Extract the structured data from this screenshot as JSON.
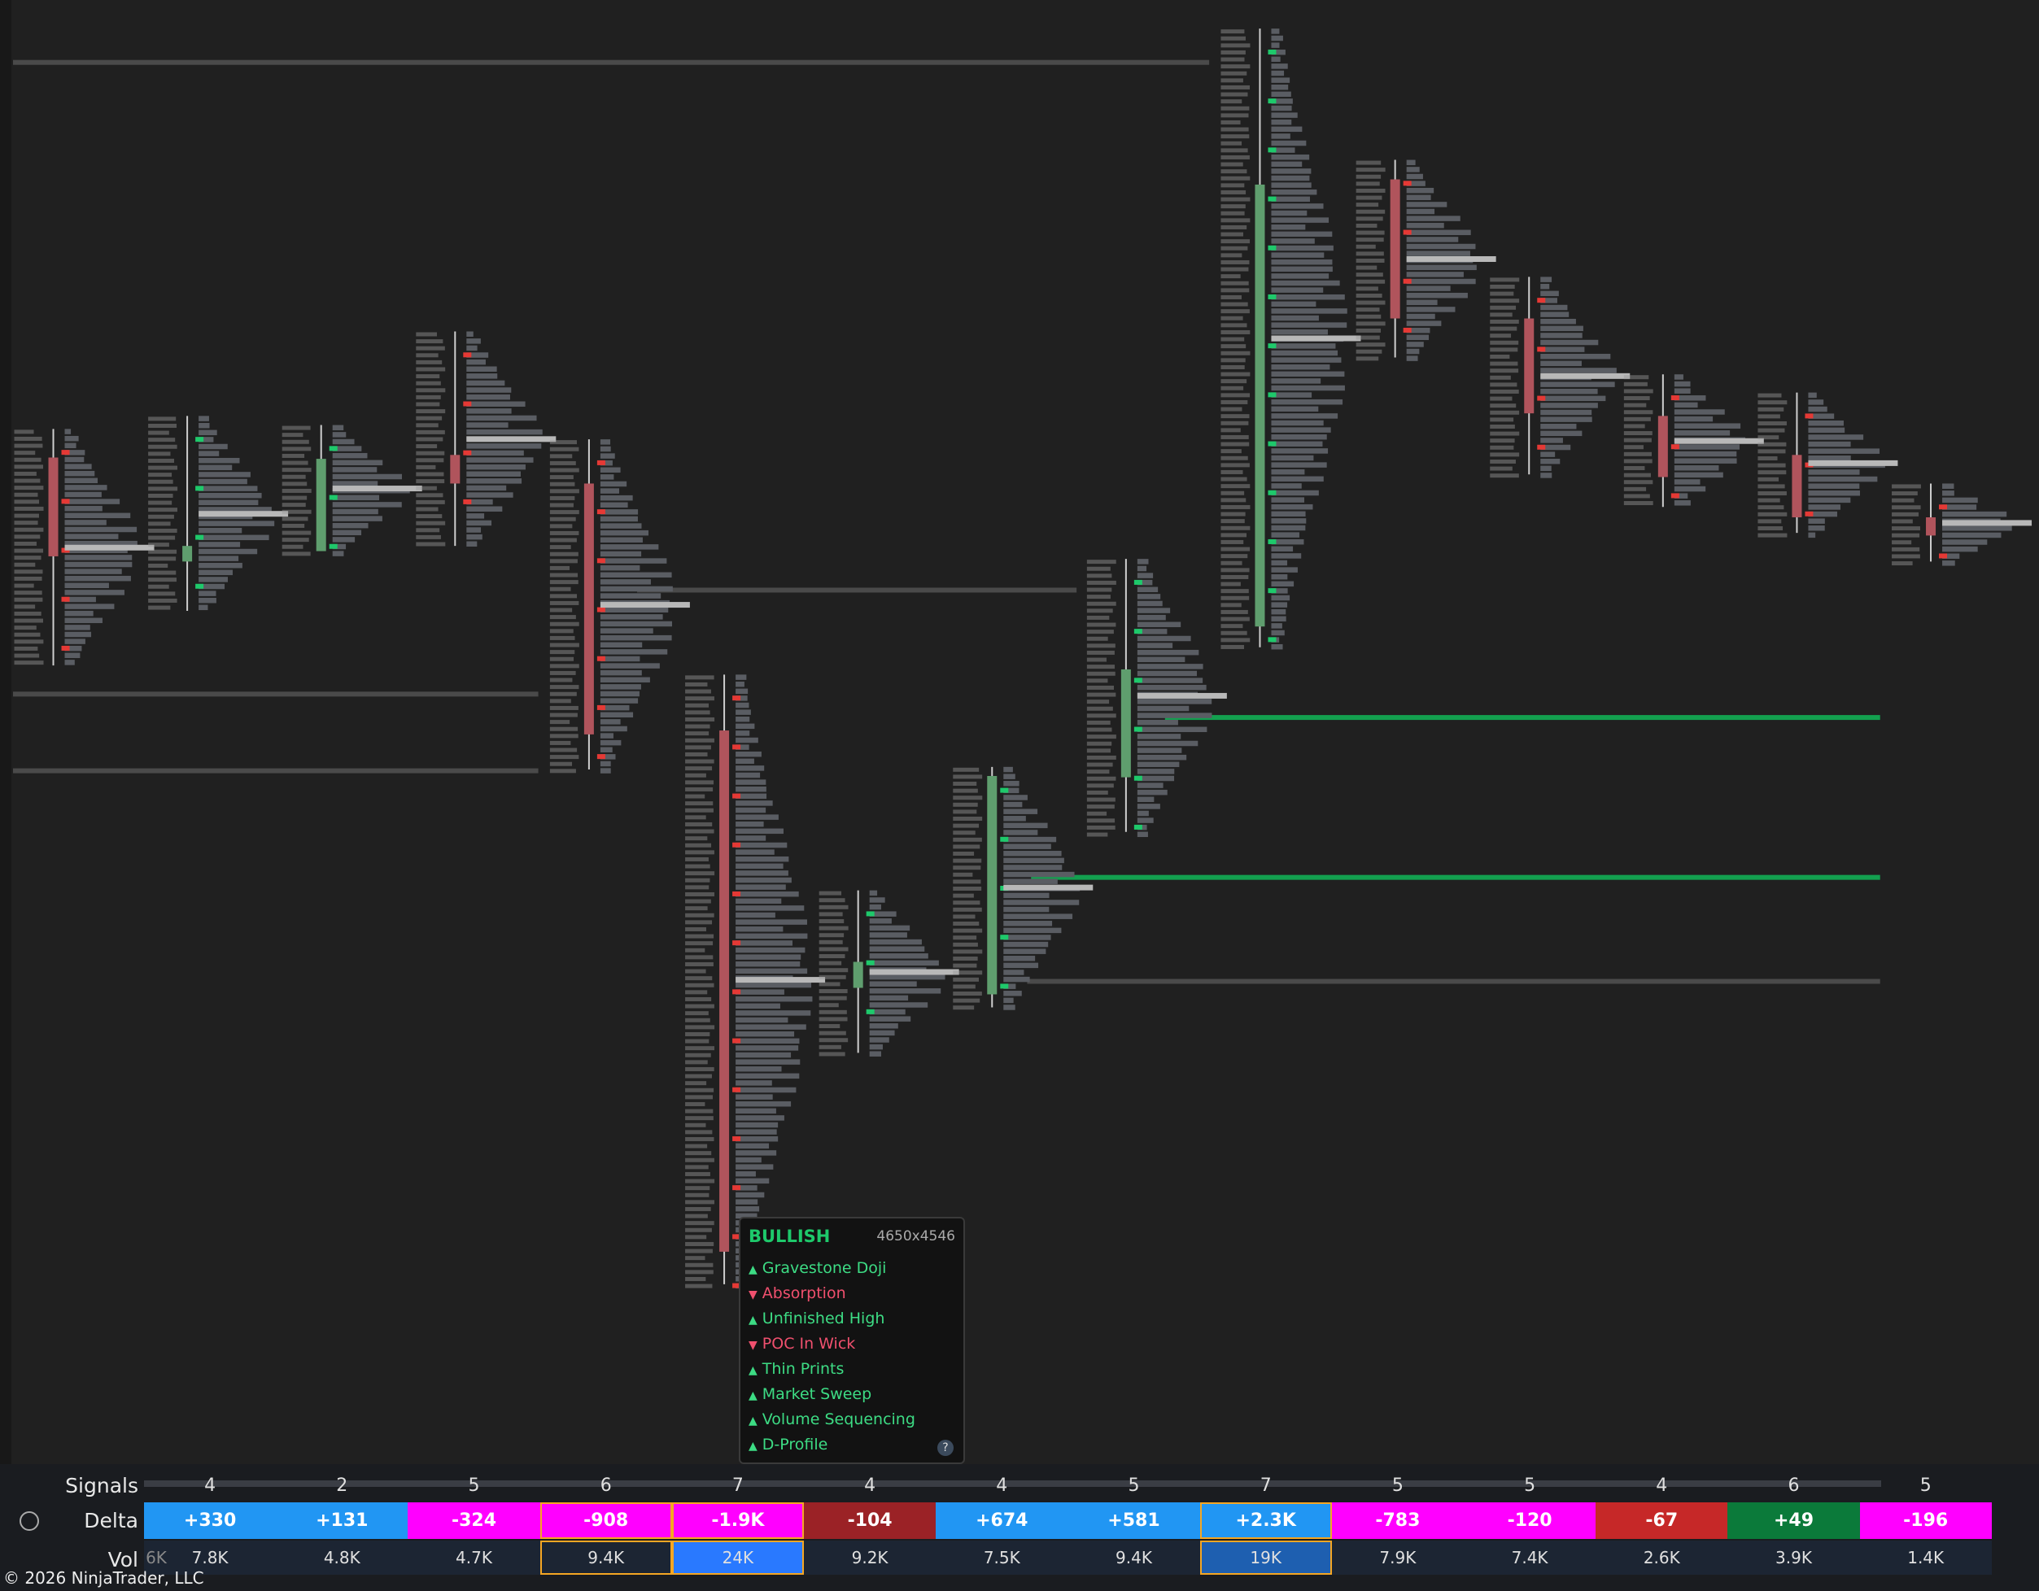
{
  "tooltip": {
    "title": "BULLISH",
    "size": "4650x4546",
    "items": [
      {
        "marker": "▲",
        "text": "Gravestone Doji",
        "color": "#3ddc84"
      },
      {
        "marker": "▼",
        "text": "Absorption",
        "color": "#f0506e"
      },
      {
        "marker": "▲",
        "text": "Unfinished High",
        "color": "#3ddc84"
      },
      {
        "marker": "▼",
        "text": "POC In Wick",
        "color": "#f0506e"
      },
      {
        "marker": "▲",
        "text": "Thin Prints",
        "color": "#3ddc84"
      },
      {
        "marker": "▲",
        "text": "Market Sweep",
        "color": "#3ddc84"
      },
      {
        "marker": "▲",
        "text": "Volume Sequencing",
        "color": "#3ddc84"
      },
      {
        "marker": "▲",
        "text": "D-Profile",
        "color": "#3ddc84"
      }
    ],
    "help": "?"
  },
  "table": {
    "row_labels": [
      "Signals",
      "Delta",
      "Vol"
    ],
    "signals": [
      4,
      2,
      5,
      6,
      7,
      4,
      4,
      5,
      7,
      5,
      5,
      4,
      6,
      5
    ],
    "delta": [
      "+330",
      "+131",
      "-324",
      "-908",
      "-1.9K",
      "-104",
      "+674",
      "+581",
      "+2.3K",
      "-783",
      "-120",
      "-67",
      "+49",
      "-196"
    ],
    "delta_colors": [
      "#2196f3",
      "#2196f3",
      "#ff00ff",
      "#ff00ff",
      "#ff00ff",
      "#9b2226",
      "#2196f3",
      "#2196f3",
      "#2196f3",
      "#ff00ff",
      "#ff00ff",
      "#c62828",
      "#0b7a3a",
      "#ff00ff"
    ],
    "delta_borders": [
      null,
      null,
      null,
      "#f5a623",
      "#f5a623",
      null,
      null,
      null,
      "#f5a623",
      null,
      null,
      null,
      null,
      null
    ],
    "vol_partial": "6K",
    "vol": [
      "7.8K",
      "4.8K",
      "4.7K",
      "9.4K",
      "24K",
      "9.2K",
      "7.5K",
      "9.4K",
      "19K",
      "7.9K",
      "7.4K",
      "2.6K",
      "3.9K",
      "1.4K"
    ],
    "vol_colors": [
      "#1c2533",
      "#1c2533",
      "#1c2533",
      "#1c2533",
      "#2979ff",
      "#1c2533",
      "#1c2533",
      "#1c2533",
      "#1e5fb0",
      "#1c2533",
      "#1c2533",
      "#1c2533",
      "#1c2533",
      "#1c2533"
    ]
  },
  "footer": {
    "copyright": "© 2026 NinjaTrader, LLC"
  }
}
